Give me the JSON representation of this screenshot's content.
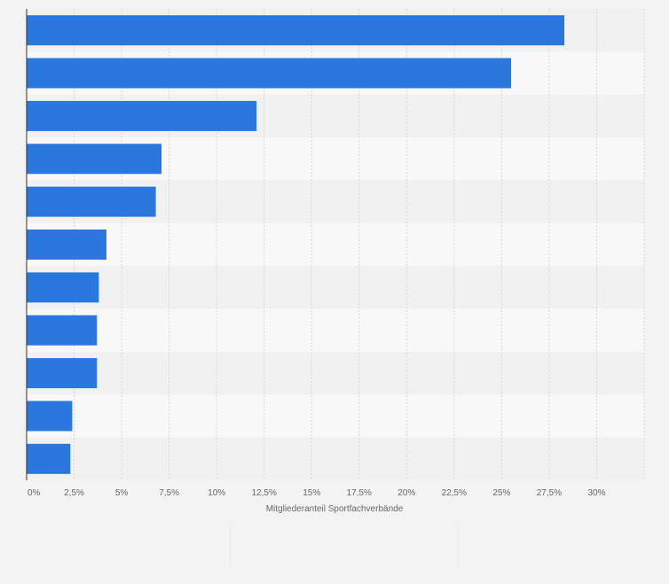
{
  "colors": {
    "bar": "#2a77de",
    "band_light": "#f8f8f8",
    "band_dark": "#f1f1f1",
    "grid": "#d6d6d6",
    "axis": "#333333",
    "text": "#666666"
  },
  "chart_data": {
    "type": "bar",
    "orientation": "horizontal",
    "categories": [
      "",
      "",
      "",
      "",
      "",
      "",
      "",
      "",
      "",
      "",
      ""
    ],
    "values": [
      28.3,
      25.5,
      12.1,
      7.1,
      6.8,
      4.2,
      3.8,
      3.7,
      3.7,
      2.4,
      2.3
    ],
    "xlabel": "Mitgliederanteil Sportfachverbände",
    "ylabel": "",
    "xlim": [
      0,
      32.5
    ],
    "x_ticks": [
      0,
      2.5,
      5,
      7.5,
      10,
      12.5,
      15,
      17.5,
      20,
      22.5,
      25,
      27.5,
      30
    ],
    "x_tick_labels": [
      "0%",
      "2,5%",
      "5%",
      "7,5%",
      "10%",
      "12,5%",
      "15%",
      "17,5%",
      "20%",
      "22,5%",
      "25%",
      "27,5%",
      "30%"
    ],
    "grid": true,
    "legend": "none"
  }
}
